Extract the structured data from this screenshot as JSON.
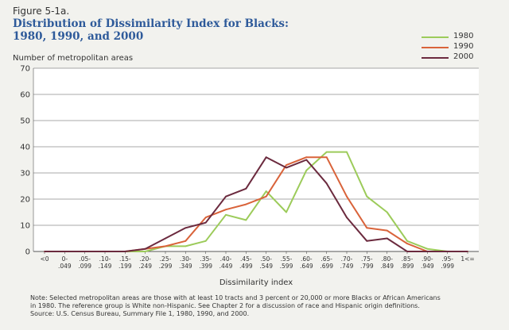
{
  "figure_label": "Figure 5-1a.",
  "title_line1": "Distribution of Dissimilarity Index for Blacks:",
  "title_line2": "1980, 1990, and 2000",
  "note": [
    "Note: Selected metropolitan areas are those with at least 10 tracts and 3 percent or 20,000 or more Blacks or African Americans",
    "in 1980.  The reference group is White non-Hispanic.  See Chapter 2 for a discussion of race and Hispanic origin definitions.",
    "Source: U.S. Census Bureau, Summary File 1, 1980, 1990, and 2000."
  ],
  "chart_data": {
    "type": "line",
    "ylabel": "Number of metropolitan areas",
    "xlabel": "Dissimilarity index",
    "ylim": [
      0,
      70
    ],
    "yticks": [
      0,
      10,
      20,
      30,
      40,
      50,
      60,
      70
    ],
    "grid": "horizontal",
    "legend_position": "top-right",
    "categories": [
      [
        "<0",
        ""
      ],
      [
        "0-",
        ".049"
      ],
      [
        ".05-",
        ".099"
      ],
      [
        ".10-",
        ".149"
      ],
      [
        ".15-",
        ".199"
      ],
      [
        ".20-",
        ".249"
      ],
      [
        ".25-",
        ".299"
      ],
      [
        ".30-",
        ".349"
      ],
      [
        ".35-",
        ".399"
      ],
      [
        ".40-",
        ".449"
      ],
      [
        ".45-",
        ".499"
      ],
      [
        ".50-",
        ".549"
      ],
      [
        ".55-",
        ".599"
      ],
      [
        ".60-",
        ".649"
      ],
      [
        ".65-",
        ".699"
      ],
      [
        ".70-",
        ".749"
      ],
      [
        ".75-",
        ".799"
      ],
      [
        ".80-",
        ".849"
      ],
      [
        ".85-",
        ".899"
      ],
      [
        ".90-",
        ".949"
      ],
      [
        ".95-",
        ".999"
      ],
      [
        "1<=",
        ""
      ]
    ],
    "series": [
      {
        "name": "1980",
        "color": "#9ccb5a",
        "values": [
          0,
          0,
          0,
          0,
          0,
          0,
          2,
          2,
          4,
          14,
          12,
          23,
          15,
          31,
          38,
          38,
          21,
          15,
          4,
          1,
          0,
          0
        ]
      },
      {
        "name": "1990",
        "color": "#d9633a",
        "values": [
          0,
          0,
          0,
          0,
          0,
          1,
          2,
          4,
          13,
          16,
          18,
          21,
          33,
          36,
          36,
          21,
          9,
          8,
          3,
          0,
          0,
          0
        ]
      },
      {
        "name": "2000",
        "color": "#6b2a3e",
        "values": [
          0,
          0,
          0,
          0,
          0,
          1,
          5,
          9,
          11,
          21,
          24,
          36,
          32,
          35,
          26,
          13,
          4,
          5,
          0,
          0,
          0,
          0
        ]
      }
    ]
  }
}
